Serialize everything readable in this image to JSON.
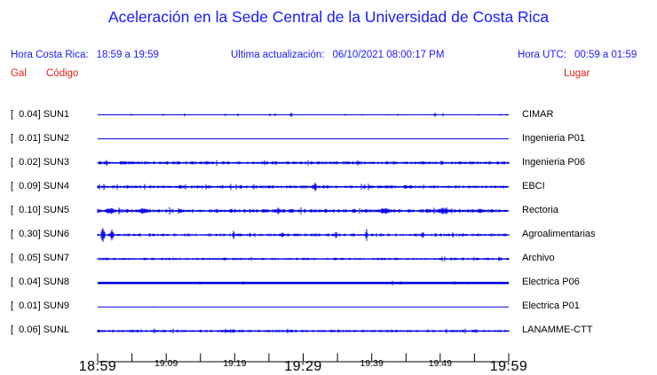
{
  "title": "Aceleración en la Sede Central de la Universidad de Costa Rica",
  "header": {
    "hora_cr_label": "Hora Costa Rica:",
    "hora_cr_value": "18:59 a 19:59",
    "update_label": "Ultima actualización:",
    "update_value": "06/10/2021 08:00:17 PM",
    "hora_utc_label": "Hora UTC:",
    "hora_utc_value": "00:59 a 01:59"
  },
  "columns": {
    "gal": "Gal",
    "codigo": "Código",
    "lugar": "Lugar"
  },
  "colors": {
    "text_blue": "#1a1aff",
    "label_red": "#e0201c",
    "trace_blue": "#0000dd",
    "axis_black": "#000000",
    "background": "#ffffff"
  },
  "chart_data": {
    "type": "line",
    "subtype": "multi-trace-seismogram",
    "title": "Aceleración en la Sede Central de la Universidad de Costa Rica",
    "x_axis": {
      "start_label": "18:59",
      "end_label": "19:59",
      "tick_interval_minutes": 5,
      "n_ticks": 13,
      "tick_labels": [
        {
          "idx": 0,
          "label": "18:59",
          "size": "large"
        },
        {
          "idx": 2,
          "label": "19:09",
          "size": "small"
        },
        {
          "idx": 4,
          "label": "19:19",
          "size": "small"
        },
        {
          "idx": 6,
          "label": "19:29",
          "size": "large"
        },
        {
          "idx": 8,
          "label": "19:39",
          "size": "small"
        },
        {
          "idx": 10,
          "label": "19:49",
          "size": "small"
        },
        {
          "idx": 12,
          "label": "19:59",
          "size": "large"
        }
      ]
    },
    "y_unit": "Gal",
    "stations": [
      {
        "gal": "0.04",
        "code": "SUN1",
        "lugar": "CIMAR",
        "thickness": 1.0,
        "noise_amp": 2.0,
        "density": 0.035,
        "spikes": [
          {
            "t": 0.47,
            "amp": 3,
            "w": 1
          },
          {
            "t": 0.82,
            "amp": 3,
            "w": 1
          }
        ]
      },
      {
        "gal": "0.01",
        "code": "SUN2",
        "lugar": "Ingenieria P01",
        "thickness": 1.0,
        "noise_amp": 0.8,
        "density": 0.004,
        "spikes": []
      },
      {
        "gal": "0.02",
        "code": "SUN3",
        "lugar": "Ingenieria P06",
        "thickness": 1.5,
        "noise_amp": 1.9,
        "density": 0.92,
        "spikes": []
      },
      {
        "gal": "0.09",
        "code": "SUN4",
        "lugar": "EBCI",
        "thickness": 1.5,
        "noise_amp": 1.9,
        "density": 0.85,
        "spikes": [
          {
            "t": 0.53,
            "amp": 6,
            "w": 2
          },
          {
            "t": 0.56,
            "amp": 3,
            "w": 2
          },
          {
            "t": 0.2,
            "amp": 3,
            "w": 3
          },
          {
            "t": 0.75,
            "amp": 3,
            "w": 3
          }
        ]
      },
      {
        "gal": "0.10",
        "code": "SUN5",
        "lugar": "Rectoria",
        "thickness": 1.5,
        "noise_amp": 2.3,
        "density": 0.93,
        "spikes": [
          {
            "t": 0.03,
            "amp": 4,
            "w": 8
          },
          {
            "t": 0.11,
            "amp": 4,
            "w": 10
          },
          {
            "t": 0.44,
            "amp": 3,
            "w": 6
          },
          {
            "t": 0.7,
            "amp": 4,
            "w": 12
          },
          {
            "t": 0.84,
            "amp": 4,
            "w": 10
          },
          {
            "t": 0.93,
            "amp": 3,
            "w": 5
          }
        ]
      },
      {
        "gal": "0.30",
        "code": "SUN6",
        "lugar": "Agroalimentarias",
        "thickness": 1.3,
        "noise_amp": 1.8,
        "density": 0.78,
        "spikes": [
          {
            "t": 0.012,
            "amp": 11,
            "w": 2
          },
          {
            "t": 0.035,
            "amp": 8,
            "w": 2
          },
          {
            "t": 0.33,
            "amp": 6,
            "w": 1
          },
          {
            "t": 0.655,
            "amp": 7,
            "w": 1
          },
          {
            "t": 0.79,
            "amp": 4,
            "w": 2
          },
          {
            "t": 0.45,
            "amp": 3,
            "w": 3
          }
        ]
      },
      {
        "gal": "0.05",
        "code": "SUN7",
        "lugar": "Archivo",
        "thickness": 1.4,
        "noise_amp": 1.5,
        "density": 0.68,
        "spikes": []
      },
      {
        "gal": "0.04",
        "code": "SUN8",
        "lugar": "Electrica P06",
        "thickness": 2.7,
        "noise_amp": 1.8,
        "density": 0.035,
        "spikes": []
      },
      {
        "gal": "0.01",
        "code": "SUN9",
        "lugar": "Electrica P01",
        "thickness": 1.0,
        "noise_amp": 0.8,
        "density": 0.004,
        "spikes": []
      },
      {
        "gal": "0.06",
        "code": "SUNL",
        "lugar": "LANAMME-CTT",
        "thickness": 1.4,
        "noise_amp": 1.6,
        "density": 0.85,
        "spikes": [
          {
            "t": 0.33,
            "amp": 3,
            "w": 2
          }
        ]
      }
    ]
  }
}
